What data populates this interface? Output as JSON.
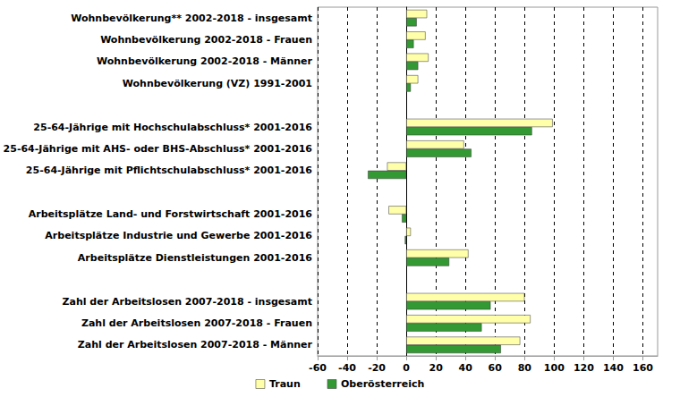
{
  "chart_data": {
    "type": "bar",
    "orientation": "horizontal",
    "categories": [
      "Wohnbevölkerung** 2002-2018 - insgesamt",
      "Wohnbevölkerung 2002-2018 - Frauen",
      "Wohnbevölkerung 2002-2018 - Männer",
      "Wohnbevölkerung (VZ) 1991-2001",
      null,
      "25-64-Jährige mit Hochschulabschluss* 2001-2016",
      "25-64-Jährige mit AHS- oder BHS-Abschluss* 2001-2016",
      "25-64-Jährige mit Pflichtschulabschluss* 2001-2016",
      null,
      "Arbeitsplätze Land- und Forstwirtschaft 2001-2016",
      "Arbeitsplätze Industrie und Gewerbe 2001-2016",
      "Arbeitsplätze Dienstleistungen 2001-2016",
      null,
      "Zahl der Arbeitslosen 2007-2018 - insgesamt",
      "Zahl der Arbeitslosen 2007-2018 - Frauen",
      "Zahl der Arbeitslosen 2007-2018 - Männer"
    ],
    "series": [
      {
        "name": "Traun",
        "color": "#ffffaa",
        "values": [
          14,
          13,
          15,
          8,
          null,
          99,
          39,
          -13,
          null,
          -12,
          3,
          42,
          null,
          80,
          84,
          77
        ]
      },
      {
        "name": "Oberösterreich",
        "color": "#339933",
        "values": [
          7,
          5,
          8,
          3,
          null,
          85,
          44,
          -26,
          null,
          -3,
          -1,
          29,
          null,
          57,
          51,
          64
        ]
      }
    ],
    "xlim": [
      -60,
      170
    ],
    "xticks": [
      -60,
      -40,
      -20,
      0,
      20,
      40,
      60,
      80,
      100,
      120,
      140,
      160
    ],
    "grid": true,
    "legend": "bottom"
  }
}
